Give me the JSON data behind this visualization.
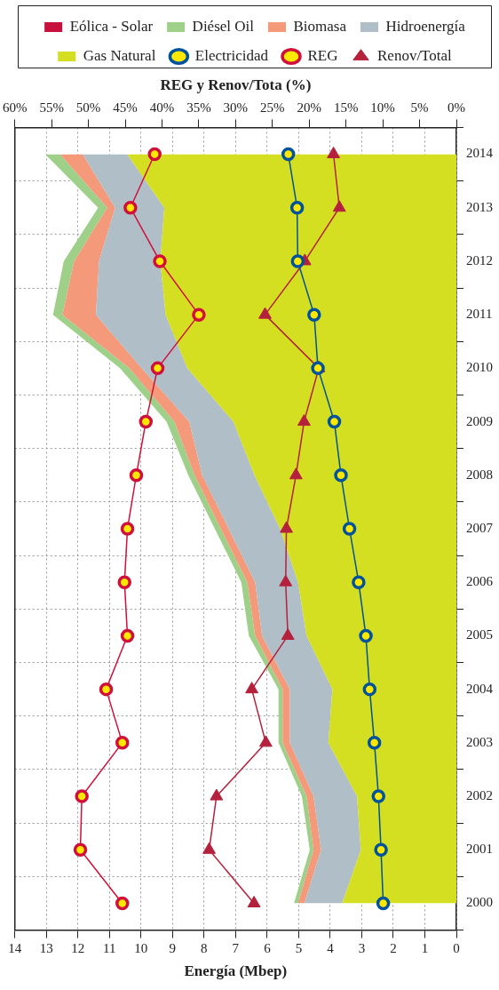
{
  "chart_data": {
    "type": "area",
    "orientation": "horizontal",
    "xlabel": "Energía (Mbep)",
    "x2label": "REG y Renov/Tota (%)",
    "categories": [
      "2014",
      "2013",
      "2012",
      "2011",
      "2010",
      "2009",
      "2008",
      "2007",
      "2006",
      "2005",
      "2004",
      "2003",
      "2002",
      "2001",
      "2000"
    ],
    "stacked": true,
    "series": [
      {
        "name": "Gas Natural",
        "color": "#d4df22",
        "values": [
          10.44,
          9.26,
          9.39,
          9.22,
          8.53,
          7.07,
          6.4,
          5.59,
          5.02,
          4.75,
          3.93,
          4.06,
          3.15,
          3.03,
          3.62
        ]
      },
      {
        "name": "Hidroenergía",
        "color": "#b0bec8",
        "values": [
          1.41,
          1.56,
          1.94,
          2.21,
          1.45,
          1.4,
          1.66,
          1.63,
          1.36,
          1.41,
          1.35,
          1.22,
          1.38,
          1.26,
          1.2
        ]
      },
      {
        "name": "Biomasa",
        "color": "#f4997a",
        "values": [
          0.72,
          0.25,
          0.79,
          1.06,
          0.39,
          0.47,
          0.24,
          0.25,
          0.25,
          0.22,
          0.23,
          0.23,
          0.22,
          0.24,
          0.2
        ]
      },
      {
        "name": "Diésel Oil",
        "color": "#9fd08a",
        "values": [
          0.47,
          0.29,
          0.33,
          0.3,
          0.3,
          0.25,
          0.2,
          0.19,
          0.19,
          0.2,
          0.13,
          0.13,
          0.15,
          0.12,
          0.13
        ]
      },
      {
        "name": "Eólica - Solar",
        "color": "#c8103c",
        "values": [
          null,
          null,
          null,
          null,
          null,
          null,
          null,
          null,
          null,
          null,
          null,
          null,
          null,
          null,
          null
        ]
      },
      {
        "name": "Electricidad",
        "type": "line",
        "marker": "circle",
        "color": "#00539b",
        "values": [
          5.33,
          5.05,
          5.03,
          4.51,
          4.39,
          3.87,
          3.66,
          3.39,
          3.1,
          2.87,
          2.75,
          2.6,
          2.47,
          2.39,
          2.32
        ]
      },
      {
        "name": "REG",
        "type": "line",
        "marker": "circle",
        "axis": "x2",
        "color": "#d0103a",
        "values": [
          41.0,
          44.3,
          40.3,
          35.0,
          40.6,
          42.2,
          43.5,
          44.7,
          45.1,
          44.7,
          47.6,
          45.4,
          50.9,
          51.1,
          45.4
        ]
      },
      {
        "name": "Renov/Total",
        "type": "line",
        "marker": "triangle",
        "axis": "x2",
        "color": "#b5213d",
        "values": [
          16.7,
          15.9,
          20.6,
          26.0,
          18.7,
          20.7,
          21.8,
          23.1,
          23.2,
          22.9,
          27.8,
          25.9,
          32.6,
          33.6,
          27.5
        ]
      }
    ],
    "xlim": [
      14,
      0
    ],
    "xticks": [
      14,
      13,
      12,
      11,
      10,
      9,
      8,
      7,
      6,
      5,
      4,
      3,
      2,
      1,
      0
    ],
    "x2lim": [
      60,
      0
    ],
    "x2ticks": [
      {
        "value": 60,
        "label": "60%"
      },
      {
        "value": 55,
        "label": "55%"
      },
      {
        "value": 50,
        "label": "50%"
      },
      {
        "value": 45,
        "label": "45%"
      },
      {
        "value": 40,
        "label": "40%"
      },
      {
        "value": 35,
        "label": "35%"
      },
      {
        "value": 30,
        "label": "30%"
      },
      {
        "value": 25,
        "label": "25%"
      },
      {
        "value": 20,
        "label": "20%"
      },
      {
        "value": 15,
        "label": "15%"
      },
      {
        "value": 10,
        "label": "10%"
      },
      {
        "value": 5,
        "label": "5%"
      },
      {
        "value": 0,
        "label": "0%"
      }
    ],
    "grid": true,
    "legend": "top",
    "line_style": "solid"
  }
}
